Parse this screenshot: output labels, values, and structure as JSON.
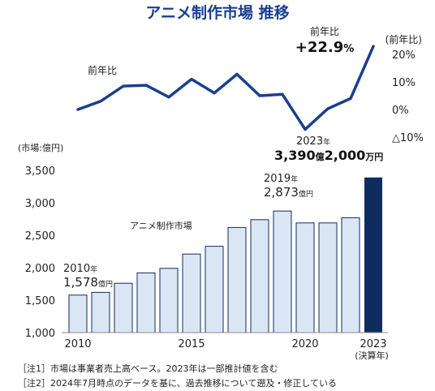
{
  "chart_data": {
    "type": "bar+line",
    "title": "アニメ制作市場 推移",
    "categories": [
      "2010",
      "2011",
      "2012",
      "2013",
      "2014",
      "2015",
      "2016",
      "2017",
      "2018",
      "2019",
      "2020",
      "2021",
      "2022",
      "2023"
    ],
    "x_tick_labels": [
      "2010",
      "2015",
      "2020",
      "2023"
    ],
    "x_tick_sub": "(決算年)",
    "bar": {
      "series_label": "アニメ制作市場",
      "unit_label": "(市場:億円)",
      "values": [
        1578,
        1620,
        1760,
        1920,
        1990,
        2210,
        2330,
        2620,
        2740,
        2873,
        2690,
        2690,
        2770,
        3390.2
      ],
      "ylim": [
        1000,
        3500
      ],
      "yticks": [
        1000,
        1500,
        2000,
        2500,
        3000,
        3500
      ],
      "ytick_labels": [
        "1,000",
        "1,500",
        "2,000",
        "2,500",
        "3,000",
        "3,500"
      ],
      "color_default": "#dbe6f5",
      "color_highlight": "#0f2c5f",
      "stroke": "#0f2c5f"
    },
    "line": {
      "series_label": "前年比",
      "axis_label": "(前年比)",
      "values": [
        0,
        3,
        8.5,
        8.8,
        4.5,
        11,
        6,
        12.8,
        5,
        5.5,
        -7.2,
        0.3,
        4,
        22.9
      ],
      "ylim": [
        -10,
        20
      ],
      "yticks": [
        -10,
        0,
        10,
        20
      ],
      "ytick_labels": [
        "△10%",
        "0%",
        "10%",
        "20%"
      ],
      "color": "#1a3f8f"
    },
    "annotations": {
      "a2010_year": "2010",
      "a2010_year_unit": "年",
      "a2010_value": "1,578",
      "a2010_unit": "億円",
      "a2019_year": "2019",
      "a2019_year_unit": "年",
      "a2019_value": "2,873",
      "a2019_unit": "億円",
      "a2023_year": "2023",
      "a2023_year_unit": "年",
      "a2023_value_1": "3,390",
      "a2023_value_1_unit": "億",
      "a2023_value_2": "2,000",
      "a2023_value_2_unit": "万円",
      "growth_label": "前年比",
      "growth_value": "+22.9",
      "growth_unit": "%"
    },
    "notes": [
      {
        "tag": "［注1］",
        "text": "市場は事業者売上高ベース。2023年は一部推計値を含む"
      },
      {
        "tag": "［注2］",
        "text": "2024年7月時点のデータを基に、過去推移について遡及・修正している"
      }
    ],
    "colors": {
      "title": "#1a3f8f",
      "text": "#222222",
      "axis": "#aaaaaa"
    }
  }
}
